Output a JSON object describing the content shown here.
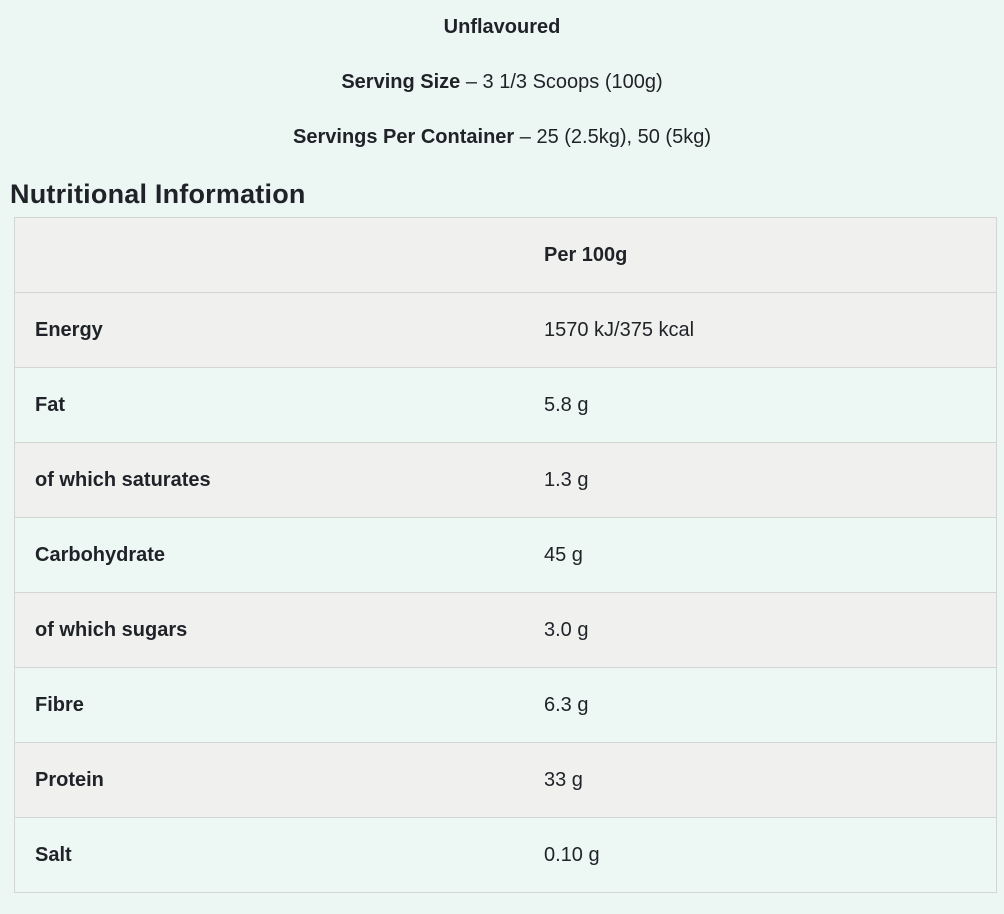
{
  "page": {
    "background_color": "#ecf6f3",
    "text_color": "#1f2227"
  },
  "product_info": {
    "flavour": "Unflavoured",
    "serving_size_label": "Serving Size",
    "serving_size_value": "– 3 1/3 Scoops (100g)",
    "servings_per_container_label": "Servings Per Container",
    "servings_per_container_value": "– 25 (2.5kg), 50 (5kg)"
  },
  "section": {
    "title": "Nutritional Information"
  },
  "nutrition_table": {
    "column_header": "Per 100g",
    "header_bg_color": "#f0f0ef",
    "stripe_gray_color": "#f0f0ef",
    "stripe_mint_color": "#edf7f4",
    "border_color": "#d2d6d5",
    "rows": [
      {
        "label": "Energy",
        "value": "1570 kJ/375 kcal"
      },
      {
        "label": "Fat",
        "value": "5.8 g"
      },
      {
        "label": "of which saturates",
        "value": "1.3 g"
      },
      {
        "label": "Carbohydrate",
        "value": "45 g"
      },
      {
        "label": "of which sugars",
        "value": "3.0 g"
      },
      {
        "label": "Fibre",
        "value": "6.3 g"
      },
      {
        "label": "Protein",
        "value": "33 g"
      },
      {
        "label": "Salt",
        "value": "0.10 g"
      }
    ]
  }
}
